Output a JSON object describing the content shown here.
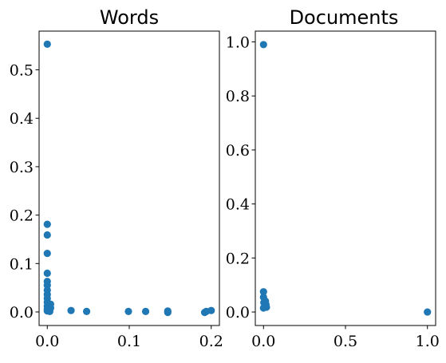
{
  "chart_data": [
    {
      "type": "scatter",
      "title": "Words",
      "color": "#1f77b4",
      "xlim": [
        -0.01,
        0.21
      ],
      "ylim": [
        -0.028,
        0.58
      ],
      "xticks": [
        0.0,
        0.1,
        0.2
      ],
      "xtick_labels": [
        "0.0",
        "0.1",
        "0.2"
      ],
      "yticks": [
        0.0,
        0.1,
        0.2,
        0.3,
        0.4,
        0.5
      ],
      "ytick_labels": [
        "0.0",
        "0.1",
        "0.2",
        "0.3",
        "0.4",
        "0.5"
      ],
      "points": [
        {
          "x": 0.0,
          "y": 0.553
        },
        {
          "x": 0.0,
          "y": 0.181
        },
        {
          "x": 0.0,
          "y": 0.159
        },
        {
          "x": 0.0,
          "y": 0.121
        },
        {
          "x": 0.0,
          "y": 0.08
        },
        {
          "x": 0.0,
          "y": 0.063
        },
        {
          "x": 0.0,
          "y": 0.055
        },
        {
          "x": 0.0,
          "y": 0.045
        },
        {
          "x": 0.0,
          "y": 0.036
        },
        {
          "x": 0.0,
          "y": 0.028
        },
        {
          "x": 0.0,
          "y": 0.02
        },
        {
          "x": 0.0,
          "y": 0.012
        },
        {
          "x": 0.0,
          "y": 0.006
        },
        {
          "x": 0.0,
          "y": 0.002
        },
        {
          "x": 0.002,
          "y": 0.004
        },
        {
          "x": 0.003,
          "y": 0.012
        },
        {
          "x": 0.004,
          "y": 0.016
        },
        {
          "x": 0.004,
          "y": 0.008
        },
        {
          "x": 0.003,
          "y": 0.001
        },
        {
          "x": 0.029,
          "y": 0.003
        },
        {
          "x": 0.048,
          "y": 0.001
        },
        {
          "x": 0.099,
          "y": 0.001
        },
        {
          "x": 0.12,
          "y": 0.001
        },
        {
          "x": 0.147,
          "y": 0.002
        },
        {
          "x": 0.147,
          "y": -0.001
        },
        {
          "x": 0.192,
          "y": -0.001
        },
        {
          "x": 0.194,
          "y": 0.001
        },
        {
          "x": 0.2,
          "y": 0.003
        }
      ]
    },
    {
      "type": "scatter",
      "title": "Documents",
      "color": "#1f77b4",
      "xlim": [
        -0.05,
        1.05
      ],
      "ylim": [
        -0.05,
        1.04
      ],
      "xticks": [
        0.0,
        0.5,
        1.0
      ],
      "xtick_labels": [
        "0.0",
        "0.5",
        "1.0"
      ],
      "yticks": [
        0.0,
        0.2,
        0.4,
        0.6,
        0.8,
        1.0
      ],
      "ytick_labels": [
        "0.0",
        "0.2",
        "0.4",
        "0.6",
        "0.8",
        "1.0"
      ],
      "points": [
        {
          "x": 0.0,
          "y": 0.99
        },
        {
          "x": 0.0,
          "y": 0.075
        },
        {
          "x": 0.0,
          "y": 0.055
        },
        {
          "x": 0.002,
          "y": 0.035
        },
        {
          "x": 0.008,
          "y": 0.022
        },
        {
          "x": 0.012,
          "y": 0.04
        },
        {
          "x": 0.015,
          "y": 0.028
        },
        {
          "x": 0.018,
          "y": 0.018
        },
        {
          "x": 0.0,
          "y": 0.015
        },
        {
          "x": 1.0,
          "y": 0.0
        }
      ]
    }
  ]
}
